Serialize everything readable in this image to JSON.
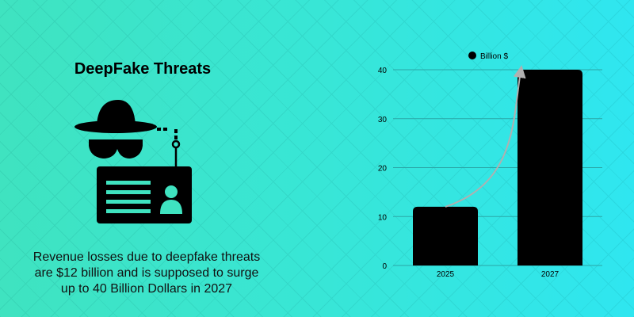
{
  "left_panel": {
    "title": "DeepFake Threats",
    "caption_lines": [
      "Revenue losses due to deepfake threats",
      "are $12 billion and is supposed to surge",
      "up to 40 Billion Dollars in 2027"
    ],
    "icon": "hacker-phishing-id-card-icon"
  },
  "colors": {
    "bar": "#000000",
    "arrow": "#b0b0b0",
    "background_start": "#3fe3c0",
    "background_end": "#2fe6f0"
  },
  "chart_data": {
    "type": "bar",
    "categories": [
      "2025",
      "2027"
    ],
    "series": [
      {
        "name": "Billion $",
        "values": [
          12,
          40
        ]
      }
    ],
    "y_ticks": [
      "0",
      "10",
      "20",
      "30",
      "40"
    ],
    "ylim": [
      0,
      40
    ],
    "grid": true,
    "legend": "top-center",
    "annotation": "curved arrow rising from 2025 bar to 2027 bar"
  }
}
